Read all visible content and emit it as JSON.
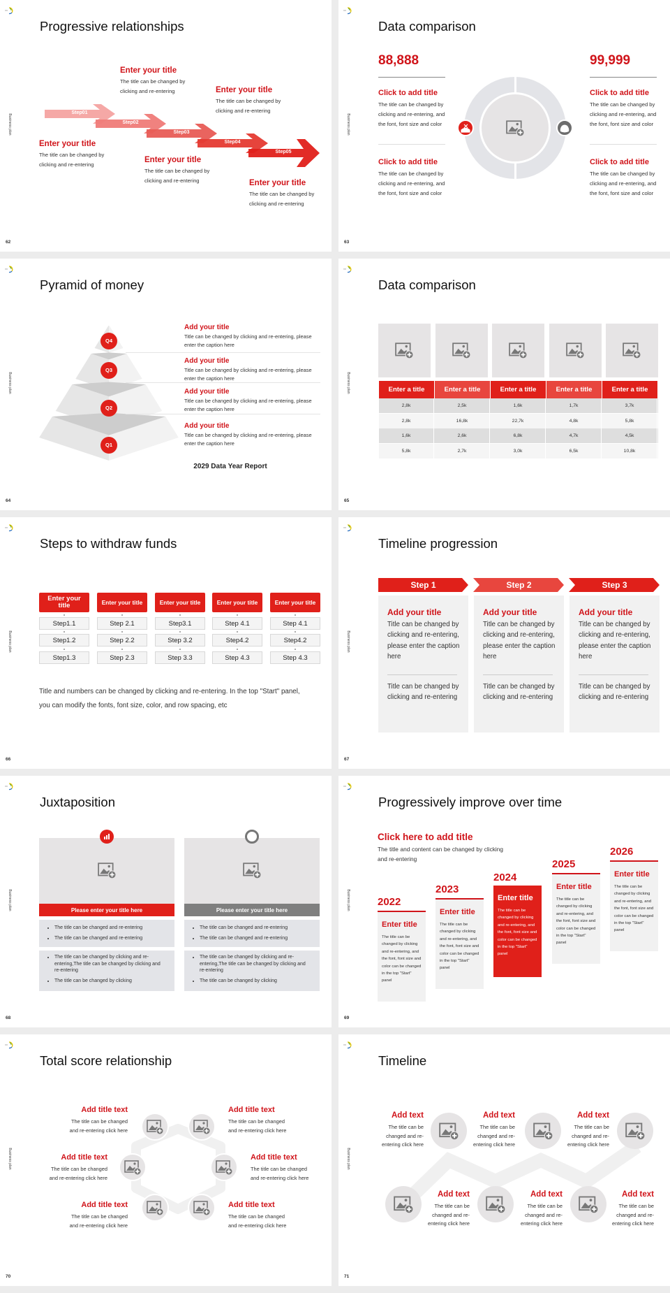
{
  "sidebar_label": "Business plan",
  "colors": {
    "accent": "#e0201a",
    "accent_light": "#e8463e",
    "title_red": "#d0141a",
    "placeholder": "#e6e4e5",
    "gray": "#7f7f7f"
  },
  "slides": [
    {
      "page": "62",
      "title": "Progressive relationships",
      "steps": [
        "Step01",
        "Step02",
        "Step03",
        "Step04",
        "Step05"
      ],
      "items": [
        {
          "title": "Enter your title",
          "desc": "The title can be changed by clicking and re-entering"
        },
        {
          "title": "Enter your title",
          "desc": "The title can be changed by clicking and re-entering"
        },
        {
          "title": "Enter your title",
          "desc": "The title can be changed by clicking and re-entering"
        },
        {
          "title": "Enter your title",
          "desc": "The title can be changed by clicking and re-entering"
        },
        {
          "title": "Enter your title",
          "desc": "The title can be changed by clicking and re-entering"
        }
      ]
    },
    {
      "page": "63",
      "title": "Data comparison",
      "left": {
        "value": "88,888",
        "icon": "money-hand-icon",
        "items": [
          {
            "title": "Click to add title",
            "desc": "The title can be changed by clicking and re-entering, and the font, font size and color"
          },
          {
            "title": "Click to add title",
            "desc": "The title can be changed by clicking and re-entering, and the font, font size and color"
          }
        ]
      },
      "right": {
        "value": "99,999",
        "icon": "money-bag-icon",
        "items": [
          {
            "title": "Click to add title",
            "desc": "The title can be changed by clicking and re-entering, and the font, font size and color"
          },
          {
            "title": "Click to add title",
            "desc": "The title can be changed by clicking and re-entering, and the font, font size and color"
          }
        ]
      }
    },
    {
      "page": "64",
      "title": "Pyramid of money",
      "levels": [
        "Q4",
        "Q3",
        "Q2",
        "Q1"
      ],
      "items": [
        {
          "title": "Add your title",
          "desc": "Title can be changed by clicking and re-entering, please enter the caption here"
        },
        {
          "title": "Add your title",
          "desc": "Title can be changed by clicking and re-entering, please enter the caption here"
        },
        {
          "title": "Add your title",
          "desc": "Title can be changed by clicking and re-entering, please enter the caption here"
        },
        {
          "title": "Add your title",
          "desc": "Title can be changed by clicking and re-entering, please enter the caption here"
        }
      ],
      "caption": "2029 Data Year Report"
    },
    {
      "page": "65",
      "title": "Data comparison",
      "headers": [
        "Enter a title",
        "Enter a title",
        "Enter a title",
        "Enter a title",
        "Enter a title"
      ],
      "rows": [
        [
          "2,8k",
          "2,5k",
          "1,6k",
          "1,7k",
          "3,7k"
        ],
        [
          "2,8k",
          "16,8k",
          "22,7k",
          "4,8k",
          "5,8k"
        ],
        [
          "1,6k",
          "2,6k",
          "6,8k",
          "4,7k",
          "4,5k"
        ],
        [
          "5,8k",
          "2,7k",
          "3,0k",
          "6,5k",
          "10,8k"
        ]
      ]
    },
    {
      "page": "66",
      "title": "Steps to withdraw funds",
      "columns": [
        {
          "header": "Enter your title",
          "steps": [
            "Step1.1",
            "Step1.2",
            "Step1.3"
          ]
        },
        {
          "header": "Enter your title",
          "steps": [
            "Step 2.1",
            "Step 2.2",
            "Step 2.3"
          ]
        },
        {
          "header": "Enter your title",
          "steps": [
            "Step3.1",
            "Step 3.2",
            "Step 3.3"
          ]
        },
        {
          "header": "Enter your title",
          "steps": [
            "Step 4.1",
            "Step4.2",
            "Step 4.3"
          ]
        },
        {
          "header": "Enter your title",
          "steps": [
            "Step 4.1",
            "Step4.2",
            "Step 4.3"
          ]
        }
      ],
      "note": "Title and numbers can be changed by clicking and re-entering. In the top \"Start\" panel, you can modify the fonts, font size, color, and row spacing, etc"
    },
    {
      "page": "67",
      "title": "Timeline progression",
      "steps": [
        {
          "label": "Step 1",
          "title": "Add your title",
          "desc": "Title can be changed by clicking and re-entering, please enter the caption here",
          "note": "Title can be changed by clicking and re-entering"
        },
        {
          "label": "Step 2",
          "title": "Add your title",
          "desc": "Title can be changed by clicking and re-entering, please enter the caption here",
          "note": "Title can be changed by clicking and re-entering"
        },
        {
          "label": "Step 3",
          "title": "Add your title",
          "desc": "Title can be changed by clicking and re-entering, please enter the caption here",
          "note": "Title can be changed by clicking and re-entering"
        }
      ]
    },
    {
      "page": "68",
      "title": "Juxtaposition",
      "panels": [
        {
          "icon": "bar-chart-icon",
          "bar": "Please enter your title here",
          "list1": [
            "The title can be changed and re-entering",
            "The title can be changed and re-entering"
          ],
          "list2": [
            "The title can be changed by clicking and re-entering,The title can be changed by clicking and re-entering",
            "The title can be changed by clicking"
          ]
        },
        {
          "icon": "pie-chart-icon",
          "bar": "Please enter your title here",
          "list1": [
            "The title can be changed and re-entering",
            "The title can be changed and re-entering"
          ],
          "list2": [
            "The title can be changed by clicking and re-entering,The title can be changed by clicking and re-entering",
            "The title can be changed by clicking"
          ]
        }
      ]
    },
    {
      "page": "69",
      "title": "Progressively improve over time",
      "heading": "Click here to add title",
      "desc": "The title and content can be changed by clicking and re-entering",
      "years": [
        {
          "year": "2022",
          "title": "Enter title",
          "desc": "The title can be changed by clicking and re-entering, and the font, font size and color can be changed in the top \"Start\" panel"
        },
        {
          "year": "2023",
          "title": "Enter title",
          "desc": "The title can be changed by clicking and re-entering, and the font, font size and color can be changed in the top \"Start\" panel"
        },
        {
          "year": "2024",
          "title": "Enter title",
          "desc": "The title can be changed by clicking and re-entering, and the font, font size and color can be changed in the top \"Start\" panel"
        },
        {
          "year": "2025",
          "title": "Enter title",
          "desc": "The title can be changed by clicking and re-entering, and the font, font size and color can be changed in the top \"Start\" panel"
        },
        {
          "year": "2026",
          "title": "Enter title",
          "desc": "The title can be changed by clicking and re-entering, and the font, font size and color can be changed in the top \"Start\" panel"
        }
      ]
    },
    {
      "page": "70",
      "title": "Total score relationship",
      "items": [
        {
          "title": "Add title text",
          "desc": "The title can be changed and re-entering click here"
        },
        {
          "title": "Add title text",
          "desc": "The title can be changed and re-entering click here"
        },
        {
          "title": "Add title text",
          "desc": "The title can be changed and re-entering click here"
        },
        {
          "title": "Add title text",
          "desc": "The title can be changed and re-entering click here"
        },
        {
          "title": "Add title text",
          "desc": "The title can be changed and re-entering click here"
        },
        {
          "title": "Add title text",
          "desc": "The title can be changed and re-entering click here"
        }
      ]
    },
    {
      "page": "71",
      "title": "Timeline",
      "items": [
        {
          "title": "Add text",
          "desc": "The title can be changed and re-entering click here"
        },
        {
          "title": "Add text",
          "desc": "The title can be changed and re-entering click here"
        },
        {
          "title": "Add text",
          "desc": "The title can be changed and re-entering click here"
        },
        {
          "title": "Add text",
          "desc": "The title can be changed and re-entering click here"
        },
        {
          "title": "Add text",
          "desc": "The title can be changed and re-entering click here"
        },
        {
          "title": "Add text",
          "desc": "The title can be changed and re-entering click here"
        }
      ]
    }
  ]
}
